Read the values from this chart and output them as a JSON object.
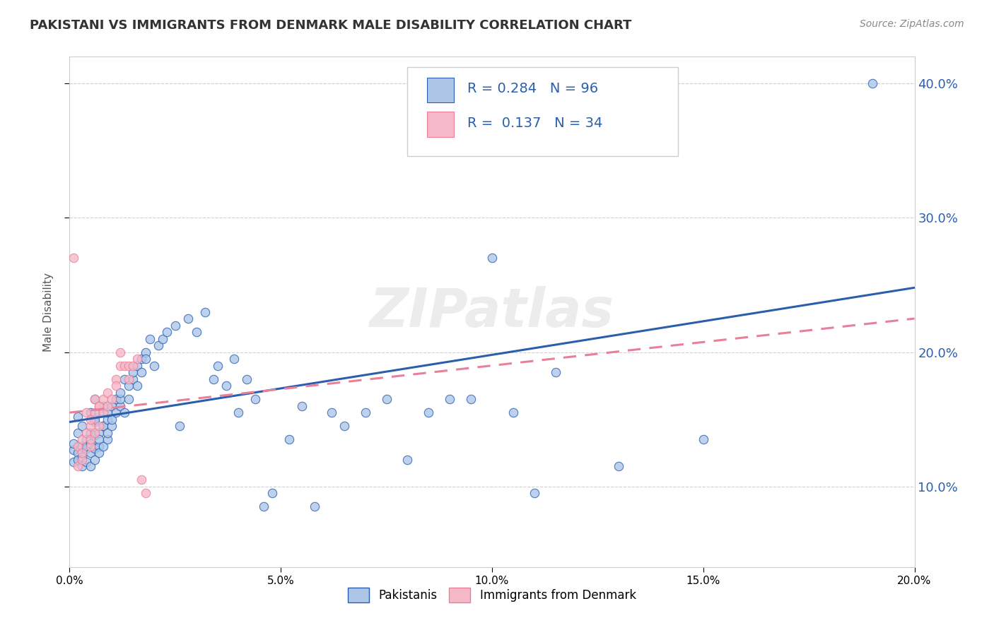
{
  "title": "PAKISTANI VS IMMIGRANTS FROM DENMARK MALE DISABILITY CORRELATION CHART",
  "source": "Source: ZipAtlas.com",
  "ylabel": "Male Disability",
  "watermark": "ZIPatlas",
  "r_pakistani": 0.284,
  "n_pakistani": 96,
  "r_denmark": 0.137,
  "n_denmark": 34,
  "xmin": 0.0,
  "xmax": 0.2,
  "ymin": 0.04,
  "ymax": 0.42,
  "pakistani_color": "#adc6e8",
  "denmark_color": "#f5b8c8",
  "trendline_pakistani_color": "#2b5fad",
  "trendline_denmark_color": "#e8809a",
  "background_color": "#ffffff",
  "legend_label_1": "Pakistanis",
  "legend_label_2": "Immigrants from Denmark",
  "pakistani_scatter": [
    [
      0.001,
      0.127
    ],
    [
      0.001,
      0.132
    ],
    [
      0.001,
      0.118
    ],
    [
      0.002,
      0.125
    ],
    [
      0.002,
      0.14
    ],
    [
      0.002,
      0.152
    ],
    [
      0.002,
      0.12
    ],
    [
      0.003,
      0.13
    ],
    [
      0.003,
      0.145
    ],
    [
      0.003,
      0.115
    ],
    [
      0.003,
      0.122
    ],
    [
      0.004,
      0.128
    ],
    [
      0.004,
      0.135
    ],
    [
      0.004,
      0.118
    ],
    [
      0.004,
      0.13
    ],
    [
      0.005,
      0.14
    ],
    [
      0.005,
      0.155
    ],
    [
      0.005,
      0.115
    ],
    [
      0.005,
      0.125
    ],
    [
      0.005,
      0.132
    ],
    [
      0.006,
      0.148
    ],
    [
      0.006,
      0.165
    ],
    [
      0.006,
      0.12
    ],
    [
      0.006,
      0.128
    ],
    [
      0.006,
      0.138
    ],
    [
      0.006,
      0.15
    ],
    [
      0.007,
      0.13
    ],
    [
      0.007,
      0.14
    ],
    [
      0.007,
      0.155
    ],
    [
      0.007,
      0.125
    ],
    [
      0.007,
      0.135
    ],
    [
      0.008,
      0.145
    ],
    [
      0.008,
      0.13
    ],
    [
      0.008,
      0.145
    ],
    [
      0.008,
      0.16
    ],
    [
      0.009,
      0.135
    ],
    [
      0.009,
      0.15
    ],
    [
      0.009,
      0.14
    ],
    [
      0.009,
      0.155
    ],
    [
      0.01,
      0.145
    ],
    [
      0.01,
      0.16
    ],
    [
      0.01,
      0.15
    ],
    [
      0.011,
      0.155
    ],
    [
      0.011,
      0.165
    ],
    [
      0.012,
      0.16
    ],
    [
      0.012,
      0.165
    ],
    [
      0.012,
      0.17
    ],
    [
      0.013,
      0.155
    ],
    [
      0.013,
      0.18
    ],
    [
      0.014,
      0.175
    ],
    [
      0.014,
      0.165
    ],
    [
      0.015,
      0.18
    ],
    [
      0.015,
      0.185
    ],
    [
      0.016,
      0.175
    ],
    [
      0.016,
      0.19
    ],
    [
      0.017,
      0.185
    ],
    [
      0.017,
      0.195
    ],
    [
      0.018,
      0.2
    ],
    [
      0.018,
      0.195
    ],
    [
      0.019,
      0.21
    ],
    [
      0.02,
      0.19
    ],
    [
      0.021,
      0.205
    ],
    [
      0.022,
      0.21
    ],
    [
      0.023,
      0.215
    ],
    [
      0.025,
      0.22
    ],
    [
      0.026,
      0.145
    ],
    [
      0.028,
      0.225
    ],
    [
      0.03,
      0.215
    ],
    [
      0.032,
      0.23
    ],
    [
      0.034,
      0.18
    ],
    [
      0.035,
      0.19
    ],
    [
      0.037,
      0.175
    ],
    [
      0.039,
      0.195
    ],
    [
      0.04,
      0.155
    ],
    [
      0.042,
      0.18
    ],
    [
      0.044,
      0.165
    ],
    [
      0.046,
      0.085
    ],
    [
      0.048,
      0.095
    ],
    [
      0.052,
      0.135
    ],
    [
      0.055,
      0.16
    ],
    [
      0.058,
      0.085
    ],
    [
      0.062,
      0.155
    ],
    [
      0.065,
      0.145
    ],
    [
      0.07,
      0.155
    ],
    [
      0.075,
      0.165
    ],
    [
      0.08,
      0.12
    ],
    [
      0.085,
      0.155
    ],
    [
      0.09,
      0.165
    ],
    [
      0.095,
      0.165
    ],
    [
      0.1,
      0.27
    ],
    [
      0.105,
      0.155
    ],
    [
      0.11,
      0.095
    ],
    [
      0.115,
      0.185
    ],
    [
      0.13,
      0.115
    ],
    [
      0.15,
      0.135
    ],
    [
      0.19,
      0.4
    ]
  ],
  "denmark_scatter": [
    [
      0.001,
      0.27
    ],
    [
      0.002,
      0.115
    ],
    [
      0.002,
      0.13
    ],
    [
      0.003,
      0.12
    ],
    [
      0.003,
      0.135
    ],
    [
      0.003,
      0.125
    ],
    [
      0.004,
      0.14
    ],
    [
      0.004,
      0.155
    ],
    [
      0.005,
      0.13
    ],
    [
      0.005,
      0.145
    ],
    [
      0.005,
      0.135
    ],
    [
      0.005,
      0.15
    ],
    [
      0.006,
      0.14
    ],
    [
      0.006,
      0.155
    ],
    [
      0.006,
      0.165
    ],
    [
      0.007,
      0.145
    ],
    [
      0.007,
      0.16
    ],
    [
      0.007,
      0.16
    ],
    [
      0.008,
      0.165
    ],
    [
      0.008,
      0.155
    ],
    [
      0.009,
      0.17
    ],
    [
      0.009,
      0.16
    ],
    [
      0.01,
      0.165
    ],
    [
      0.011,
      0.18
    ],
    [
      0.011,
      0.175
    ],
    [
      0.012,
      0.19
    ],
    [
      0.012,
      0.2
    ],
    [
      0.013,
      0.19
    ],
    [
      0.014,
      0.18
    ],
    [
      0.014,
      0.19
    ],
    [
      0.015,
      0.19
    ],
    [
      0.016,
      0.195
    ],
    [
      0.017,
      0.105
    ],
    [
      0.018,
      0.095
    ]
  ],
  "trendline_pak_x0": 0.0,
  "trendline_pak_x1": 0.2,
  "trendline_pak_y0": 0.148,
  "trendline_pak_y1": 0.248,
  "trendline_den_x0": 0.0,
  "trendline_den_x1": 0.2,
  "trendline_den_y0": 0.155,
  "trendline_den_y1": 0.225
}
